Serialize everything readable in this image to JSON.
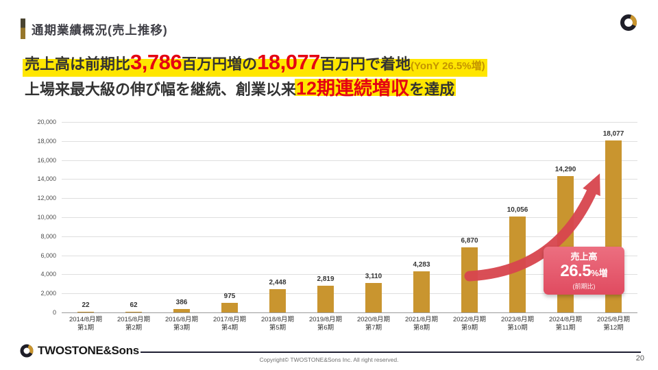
{
  "colors": {
    "bar": "#C9952F",
    "number_red": "#E50012",
    "highlight_yellow": "#FFE600",
    "badge_pink": "#E4556A",
    "arrow_red": "#D8454E"
  },
  "header": {
    "title": "通期業績概況(売上推移)"
  },
  "headline": {
    "line1": {
      "seg1": "売上高は前期比",
      "num1": "3,786",
      "seg2": "百万円増の",
      "num2": "18,077",
      "seg3": "百万円で着地",
      "yony": "(YonY 26.5%増)"
    },
    "line2": {
      "seg1": "上場来最大級の伸び幅を継続、創業以来",
      "red": "12期連続増収",
      "seg2": "を達成"
    }
  },
  "chart_data": {
    "type": "bar",
    "title": "",
    "xlabel": "",
    "ylabel": "",
    "categories": [
      "2014/8月期",
      "2015/8月期",
      "2016/8月期",
      "2017/8月期",
      "2018/8月期",
      "2019/8月期",
      "2020/8月期",
      "2021/8月期",
      "2022/8月期",
      "2023/8月期",
      "2024/8月期",
      "2025/8月期"
    ],
    "period_labels": [
      "第1期",
      "第2期",
      "第3期",
      "第4期",
      "第5期",
      "第6期",
      "第7期",
      "第8期",
      "第9期",
      "第10期",
      "第11期",
      "第12期"
    ],
    "values": [
      22,
      62,
      386,
      975,
      2448,
      2819,
      3110,
      4283,
      6870,
      10056,
      14290,
      18077
    ],
    "value_labels": [
      "22",
      "62",
      "386",
      "975",
      "2,448",
      "2,819",
      "3,110",
      "4,283",
      "6,870",
      "10,056",
      "14,290",
      "18,077"
    ],
    "ylim": [
      0,
      20000
    ],
    "ytick_step": 2000,
    "ytick_labels": [
      "0",
      "2,000",
      "4,000",
      "6,000",
      "8,000",
      "10,000",
      "12,000",
      "14,000",
      "16,000",
      "18,000",
      "20,000"
    ],
    "grid": true,
    "legend": "none",
    "bar_color": "#C9952F"
  },
  "badge": {
    "title": "売上高",
    "value": "26.5",
    "unit": "%増",
    "note": "(前期比)"
  },
  "footer": {
    "logo_text": "TWOSTONE&Sons",
    "copyright": "Copyright© TWOSTONE&Sons Inc. All right reserved.",
    "page": "20"
  }
}
